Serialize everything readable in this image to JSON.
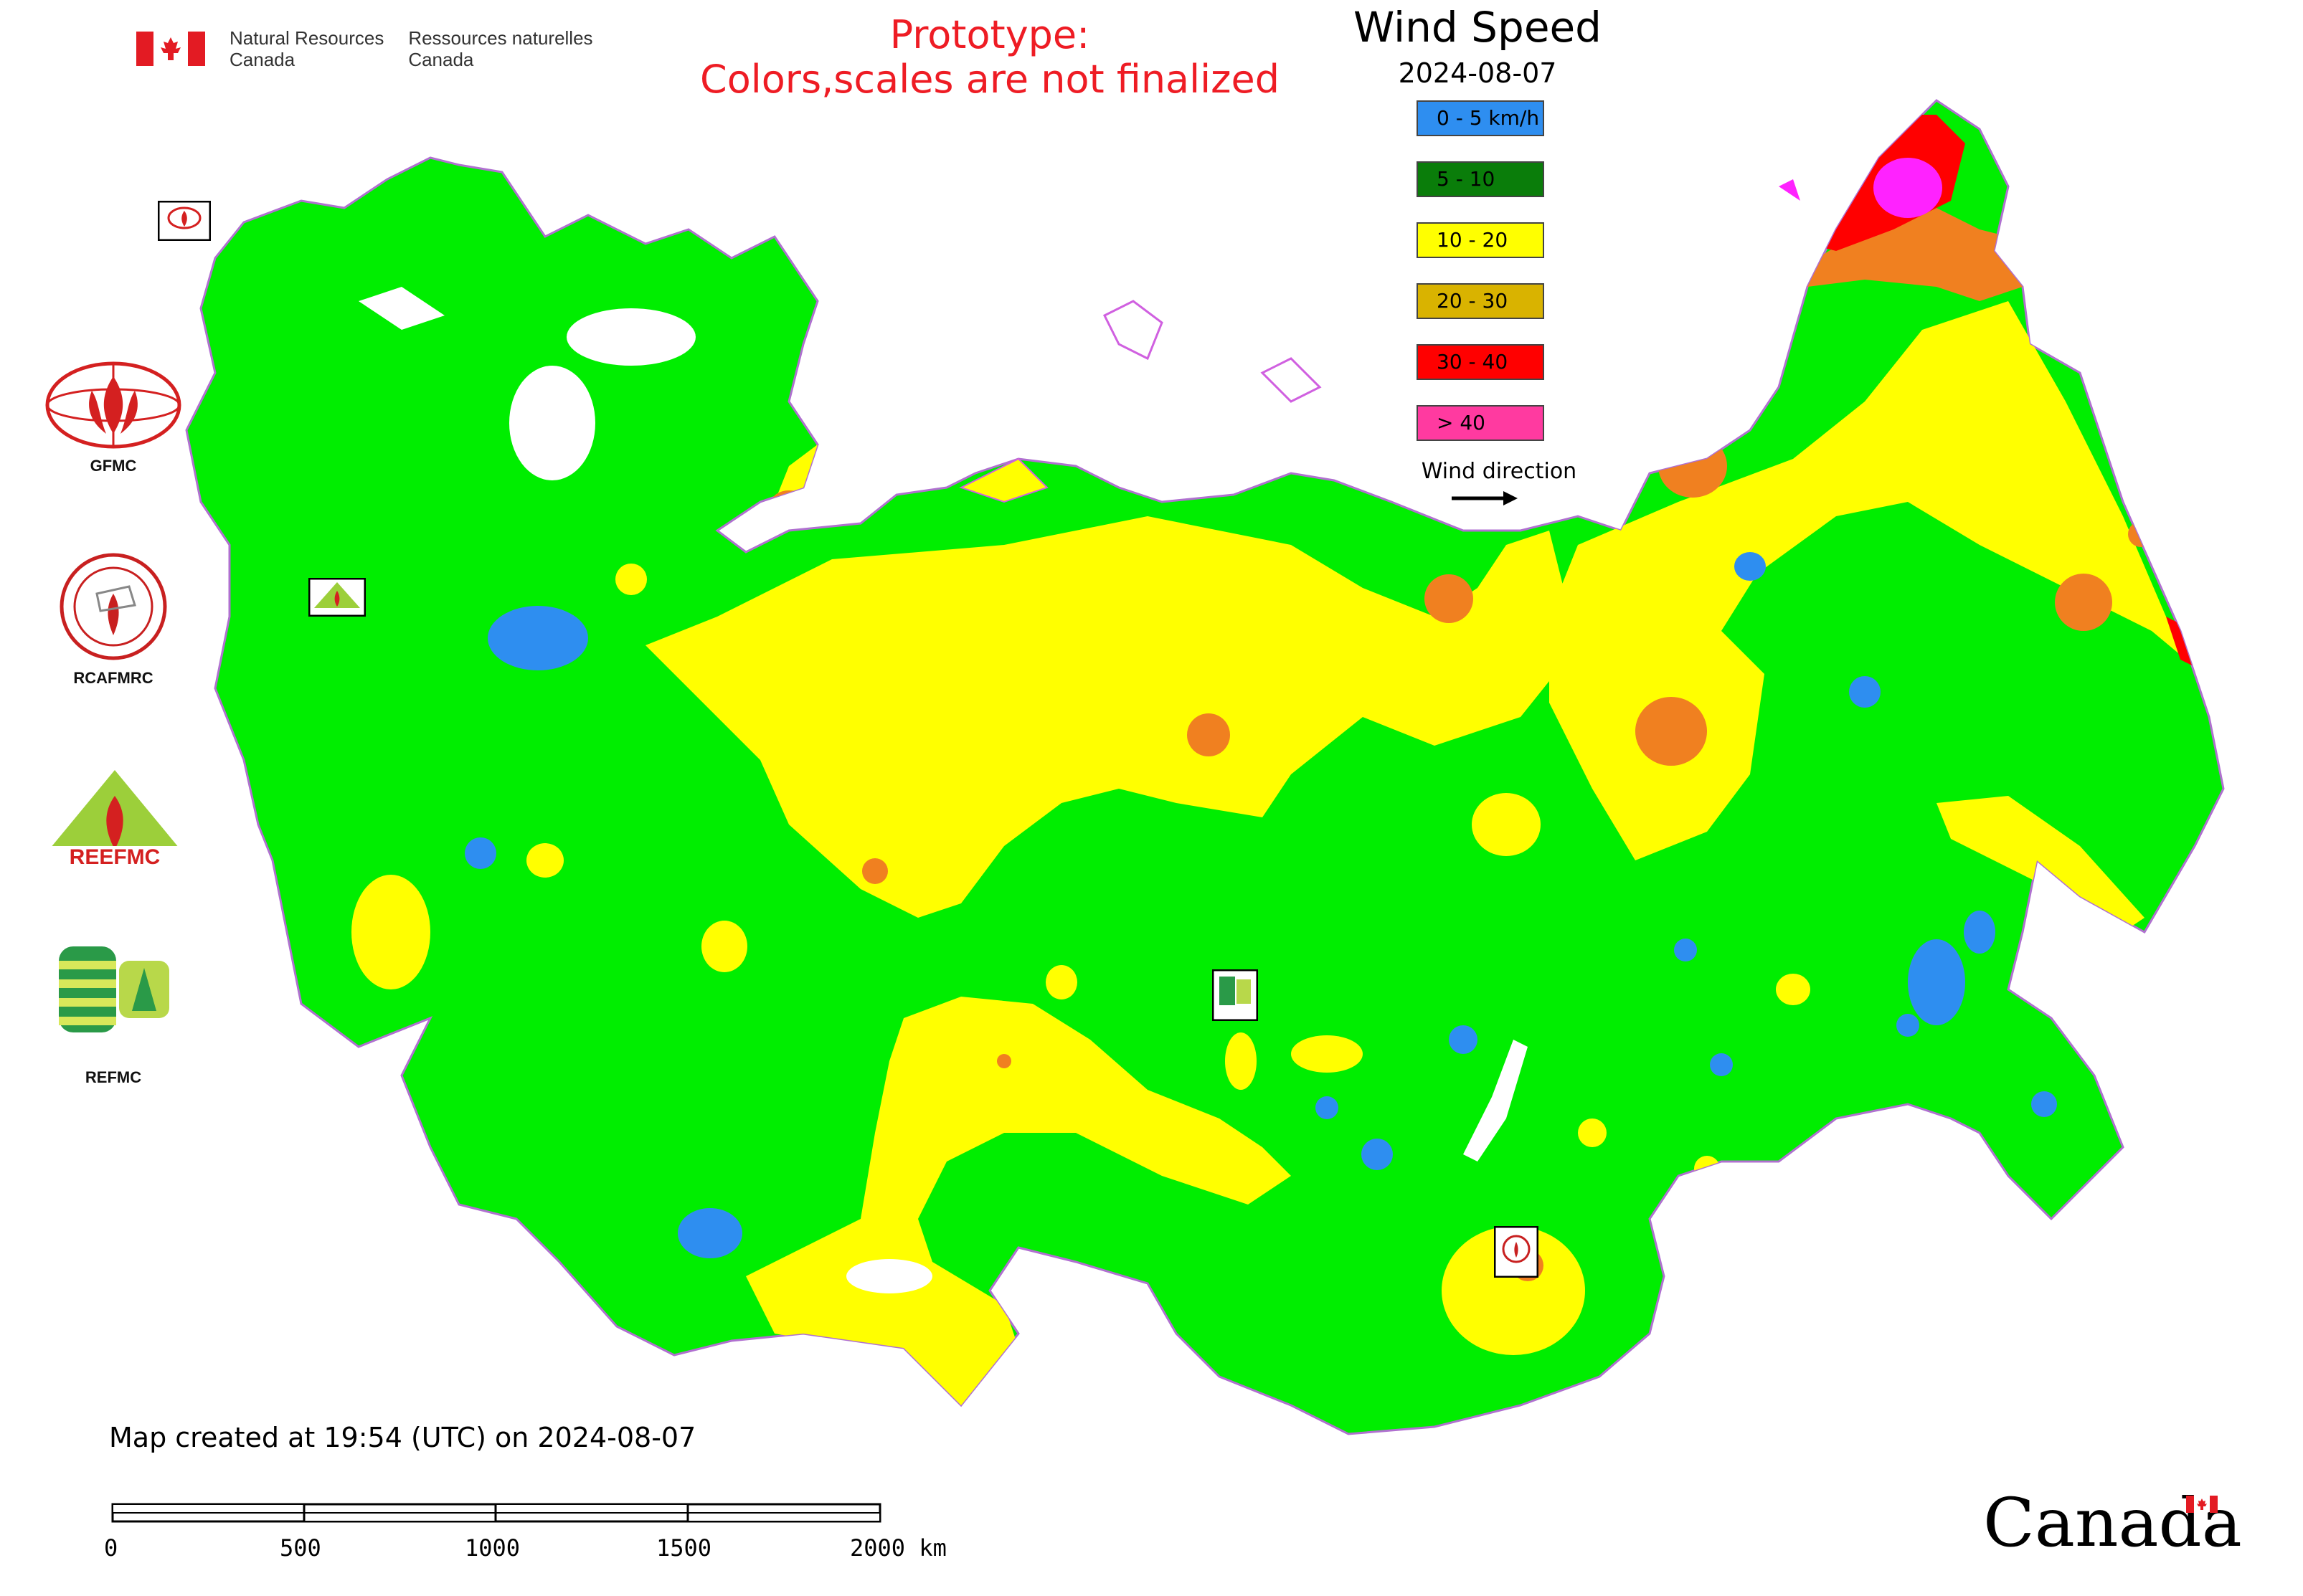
{
  "header": {
    "agency_en_line1": "Natural Resources",
    "agency_en_line2": "Canada",
    "agency_fr_line1": "Ressources naturelles",
    "agency_fr_line2": "Canada",
    "notice_line1": "Prototype:",
    "notice_line2": "Colors,scales are not finalized"
  },
  "legend": {
    "title": "Wind Speed",
    "date": "2024-08-07",
    "classes": [
      {
        "label": "0 - 5 km/h",
        "color": "#2e8ef0"
      },
      {
        "label": "5 - 10",
        "color": "#0a7d0a"
      },
      {
        "label": "10 - 20",
        "color": "#ffff00"
      },
      {
        "label": "20 - 30",
        "color": "#d9b300"
      },
      {
        "label": "30 - 40",
        "color": "#ff0000"
      },
      {
        "label": "> 40",
        "color": "#ff3aa0"
      }
    ],
    "wind_direction_label": "Wind direction"
  },
  "map_colors": {
    "low_wind": "#2e8ef0",
    "green_zone": "#00ee00",
    "yellow_zone": "#ffff00",
    "orange_zone": "#f08020",
    "red_zone": "#ff0000",
    "magenta_zone": "#ff22ff",
    "border": "#9a7ab0"
  },
  "side_logos": [
    {
      "name": "GFMC",
      "label": "GFMC"
    },
    {
      "name": "RCAFMRC",
      "label": "RCAFMRC"
    },
    {
      "name": "REEFMC",
      "label": "REEFMC"
    },
    {
      "name": "REFMC",
      "label": "REFMC"
    }
  ],
  "footer": {
    "map_created": "Map created at 19:54 (UTC) on 2024-08-07",
    "scale_ticks": [
      "0",
      "500",
      "1000",
      "1500",
      "2000 km"
    ],
    "wordmark": "Canada"
  }
}
